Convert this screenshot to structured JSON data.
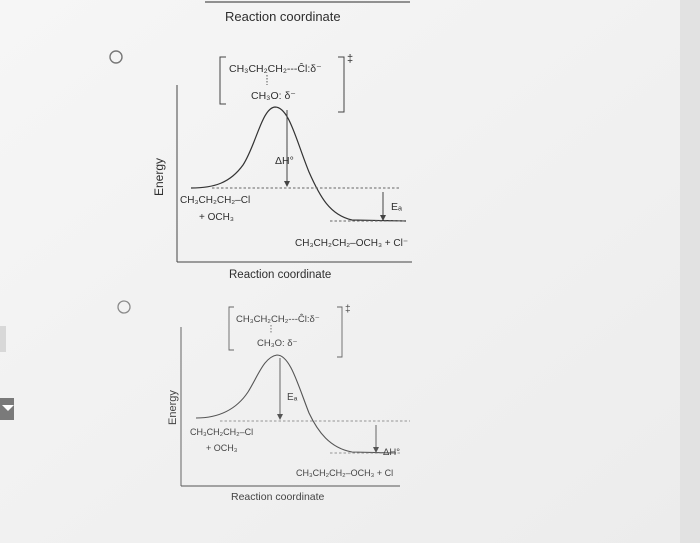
{
  "header": {
    "axis_title_top": "Reaction coordinate"
  },
  "options": [
    {
      "ts_line1": "CH₃CH₂CH₂---Ĉl:δ⁻",
      "ts_line2": "CH₃O: δ⁻",
      "ts_dagger": "‡",
      "ylabel": "Energy",
      "upper_label": "ΔH°",
      "lower_label": "Eₐ",
      "reactant_line1": "CH₃CH₂CH₂–Cl",
      "reactant_line2": "+ OCH₃",
      "product": "CH₃CH₂CH₂–OCH₃ + Cl⁻",
      "xlabel": "Reaction coordinate"
    },
    {
      "ts_line1": "CH₃CH₂CH₂---Ĉl:δ⁻",
      "ts_line2": "CH₃O: δ⁻",
      "ts_dagger": "‡",
      "ylabel": "Energy",
      "upper_label": "Eₐ",
      "lower_label": "ΔH°",
      "reactant_line1": "CH₃CH₂CH₂–Cl",
      "reactant_line2": "+ OCH₃",
      "product": "CH₃CH₂CH₂–OCH₃ + Cl",
      "xlabel": "Reaction coordinate"
    }
  ],
  "colors": {
    "paper": "#f2f2f2",
    "shadow": "#d6d6d6",
    "ink": "#2e2e2e",
    "nav_arrow_bg": "#7a7a7a"
  }
}
